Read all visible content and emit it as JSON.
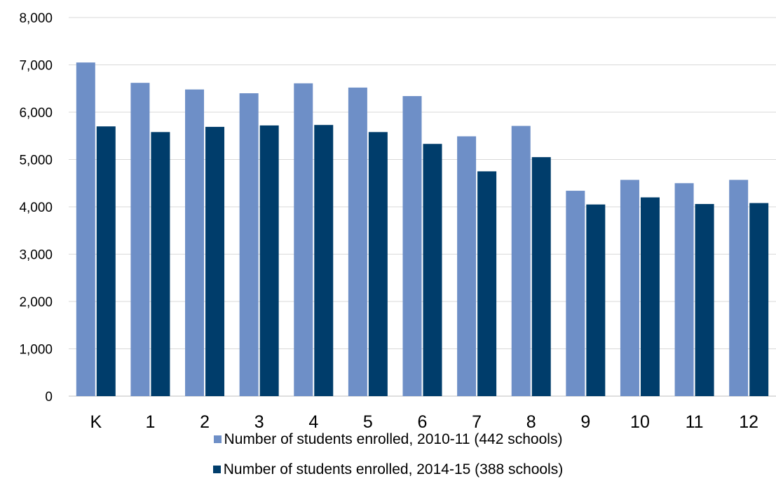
{
  "chart_data": {
    "type": "bar",
    "categories": [
      "K",
      "1",
      "2",
      "3",
      "4",
      "5",
      "6",
      "7",
      "8",
      "9",
      "10",
      "11",
      "12"
    ],
    "series": [
      {
        "name": "Number of students enrolled, 2010-11 (442 schools)",
        "color": "#6e8fc7",
        "values": [
          7050,
          6620,
          6480,
          6400,
          6610,
          6520,
          6340,
          5490,
          5710,
          4340,
          4570,
          4500,
          4570
        ]
      },
      {
        "name": "Number of students enrolled, 2014-15 (388 schools)",
        "color": "#003d6b",
        "values": [
          5700,
          5580,
          5690,
          5720,
          5730,
          5580,
          5330,
          4750,
          5050,
          4050,
          4200,
          4060,
          4080
        ]
      }
    ],
    "yticks": [
      "0",
      "1,000",
      "2,000",
      "3,000",
      "4,000",
      "5,000",
      "6,000",
      "7,000",
      "8,000"
    ],
    "ylim": [
      0,
      8000
    ],
    "grid": true,
    "legend_position": "bottom",
    "title": "",
    "xlabel": "",
    "ylabel": ""
  }
}
